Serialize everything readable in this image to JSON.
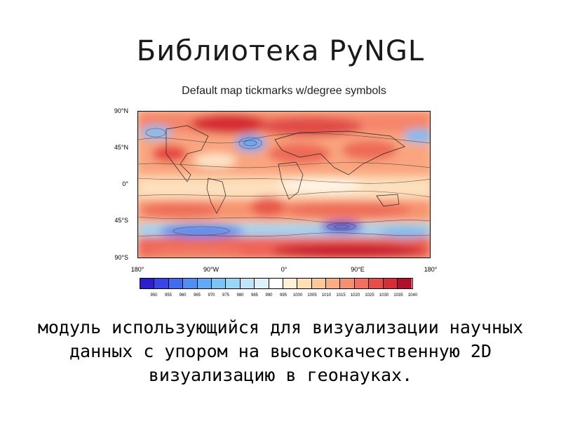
{
  "slide": {
    "title": "Библиотека PyNGL",
    "body": "модуль использующийся для визуализации научных данных с упором на высококачественную 2D визуализацию в геонауках."
  },
  "figure": {
    "title": "Default map tickmarks w/degree symbols",
    "lat_ticks": [
      "90°N",
      "45°N",
      "0°",
      "45°S",
      "90°S"
    ],
    "lon_ticks": [
      "180°",
      "90°W",
      "0°",
      "90°E",
      "180°"
    ],
    "colorbar_labels": [
      "950",
      "955",
      "960",
      "965",
      "970",
      "975",
      "980",
      "985",
      "990",
      "995",
      "1000",
      "1005",
      "1010",
      "1015",
      "1020",
      "1025",
      "1030",
      "1035",
      "1040"
    ],
    "colorbar_colors": [
      "#2b1fd0",
      "#3a45e8",
      "#3f6cf0",
      "#4d8ff4",
      "#62aaf6",
      "#7cc3f6",
      "#9ad6f6",
      "#bfe5f6",
      "#dff1fa",
      "#ffffff",
      "#fff1d6",
      "#fee0b2",
      "#fdc996",
      "#fbae82",
      "#f79070",
      "#f2705f",
      "#e84c4a",
      "#d82c36",
      "#b10f2a"
    ]
  }
}
